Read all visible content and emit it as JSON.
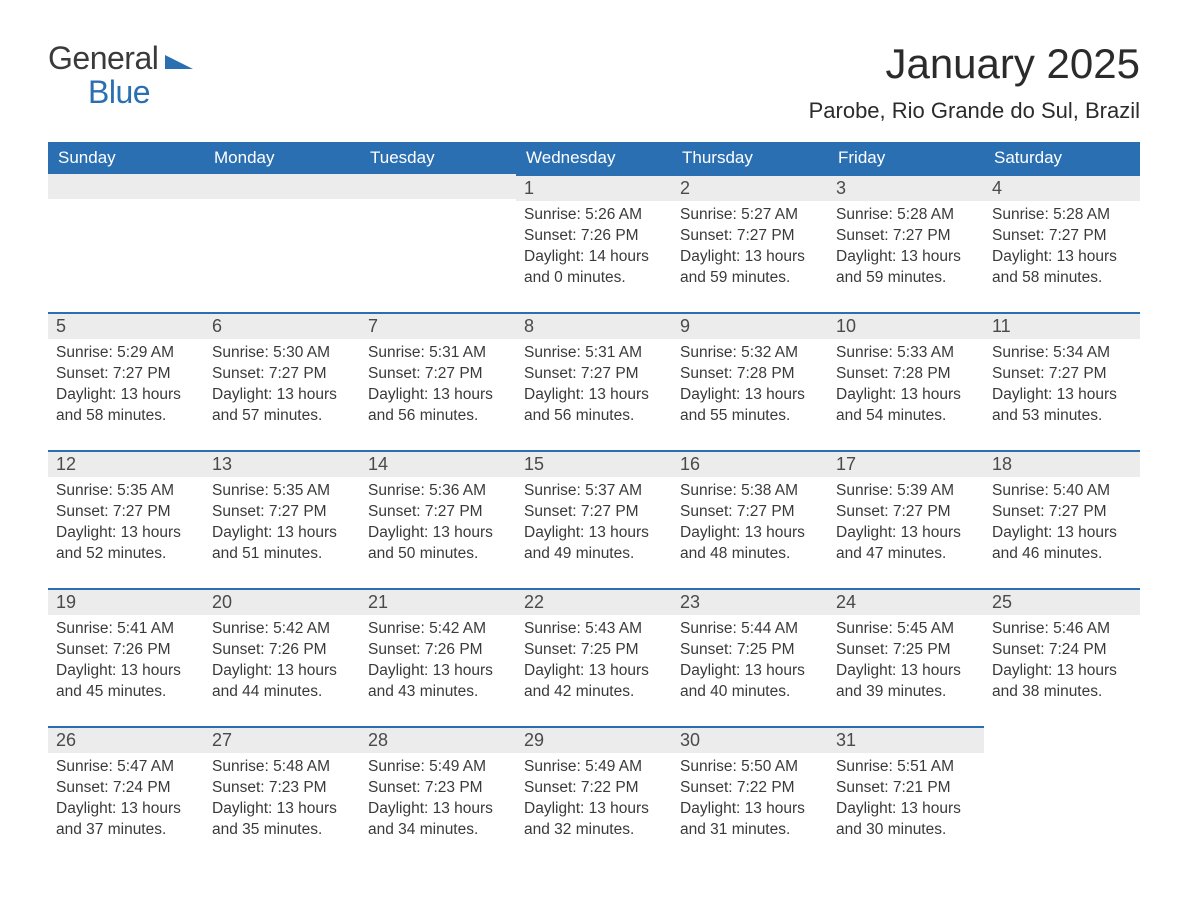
{
  "logo": {
    "text_general": "General",
    "text_blue": "Blue"
  },
  "header": {
    "month_title": "January 2025",
    "location": "Parobe, Rio Grande do Sul, Brazil"
  },
  "calendar": {
    "brand_color": "#2b6fb3",
    "header_bg": "#2b6fb3",
    "header_text_color": "#ffffff",
    "daynum_bg": "#ececec",
    "body_bg": "#ffffff",
    "text_color": "#3a3a3a",
    "columns": [
      "Sunday",
      "Monday",
      "Tuesday",
      "Wednesday",
      "Thursday",
      "Friday",
      "Saturday"
    ],
    "weeks": [
      [
        null,
        null,
        null,
        {
          "day": "1",
          "sunrise": "5:26 AM",
          "sunset": "7:26 PM",
          "daylight": "14 hours and 0 minutes."
        },
        {
          "day": "2",
          "sunrise": "5:27 AM",
          "sunset": "7:27 PM",
          "daylight": "13 hours and 59 minutes."
        },
        {
          "day": "3",
          "sunrise": "5:28 AM",
          "sunset": "7:27 PM",
          "daylight": "13 hours and 59 minutes."
        },
        {
          "day": "4",
          "sunrise": "5:28 AM",
          "sunset": "7:27 PM",
          "daylight": "13 hours and 58 minutes."
        }
      ],
      [
        {
          "day": "5",
          "sunrise": "5:29 AM",
          "sunset": "7:27 PM",
          "daylight": "13 hours and 58 minutes."
        },
        {
          "day": "6",
          "sunrise": "5:30 AM",
          "sunset": "7:27 PM",
          "daylight": "13 hours and 57 minutes."
        },
        {
          "day": "7",
          "sunrise": "5:31 AM",
          "sunset": "7:27 PM",
          "daylight": "13 hours and 56 minutes."
        },
        {
          "day": "8",
          "sunrise": "5:31 AM",
          "sunset": "7:27 PM",
          "daylight": "13 hours and 56 minutes."
        },
        {
          "day": "9",
          "sunrise": "5:32 AM",
          "sunset": "7:28 PM",
          "daylight": "13 hours and 55 minutes."
        },
        {
          "day": "10",
          "sunrise": "5:33 AM",
          "sunset": "7:28 PM",
          "daylight": "13 hours and 54 minutes."
        },
        {
          "day": "11",
          "sunrise": "5:34 AM",
          "sunset": "7:27 PM",
          "daylight": "13 hours and 53 minutes."
        }
      ],
      [
        {
          "day": "12",
          "sunrise": "5:35 AM",
          "sunset": "7:27 PM",
          "daylight": "13 hours and 52 minutes."
        },
        {
          "day": "13",
          "sunrise": "5:35 AM",
          "sunset": "7:27 PM",
          "daylight": "13 hours and 51 minutes."
        },
        {
          "day": "14",
          "sunrise": "5:36 AM",
          "sunset": "7:27 PM",
          "daylight": "13 hours and 50 minutes."
        },
        {
          "day": "15",
          "sunrise": "5:37 AM",
          "sunset": "7:27 PM",
          "daylight": "13 hours and 49 minutes."
        },
        {
          "day": "16",
          "sunrise": "5:38 AM",
          "sunset": "7:27 PM",
          "daylight": "13 hours and 48 minutes."
        },
        {
          "day": "17",
          "sunrise": "5:39 AM",
          "sunset": "7:27 PM",
          "daylight": "13 hours and 47 minutes."
        },
        {
          "day": "18",
          "sunrise": "5:40 AM",
          "sunset": "7:27 PM",
          "daylight": "13 hours and 46 minutes."
        }
      ],
      [
        {
          "day": "19",
          "sunrise": "5:41 AM",
          "sunset": "7:26 PM",
          "daylight": "13 hours and 45 minutes."
        },
        {
          "day": "20",
          "sunrise": "5:42 AM",
          "sunset": "7:26 PM",
          "daylight": "13 hours and 44 minutes."
        },
        {
          "day": "21",
          "sunrise": "5:42 AM",
          "sunset": "7:26 PM",
          "daylight": "13 hours and 43 minutes."
        },
        {
          "day": "22",
          "sunrise": "5:43 AM",
          "sunset": "7:25 PM",
          "daylight": "13 hours and 42 minutes."
        },
        {
          "day": "23",
          "sunrise": "5:44 AM",
          "sunset": "7:25 PM",
          "daylight": "13 hours and 40 minutes."
        },
        {
          "day": "24",
          "sunrise": "5:45 AM",
          "sunset": "7:25 PM",
          "daylight": "13 hours and 39 minutes."
        },
        {
          "day": "25",
          "sunrise": "5:46 AM",
          "sunset": "7:24 PM",
          "daylight": "13 hours and 38 minutes."
        }
      ],
      [
        {
          "day": "26",
          "sunrise": "5:47 AM",
          "sunset": "7:24 PM",
          "daylight": "13 hours and 37 minutes."
        },
        {
          "day": "27",
          "sunrise": "5:48 AM",
          "sunset": "7:23 PM",
          "daylight": "13 hours and 35 minutes."
        },
        {
          "day": "28",
          "sunrise": "5:49 AM",
          "sunset": "7:23 PM",
          "daylight": "13 hours and 34 minutes."
        },
        {
          "day": "29",
          "sunrise": "5:49 AM",
          "sunset": "7:22 PM",
          "daylight": "13 hours and 32 minutes."
        },
        {
          "day": "30",
          "sunrise": "5:50 AM",
          "sunset": "7:22 PM",
          "daylight": "13 hours and 31 minutes."
        },
        {
          "day": "31",
          "sunrise": "5:51 AM",
          "sunset": "7:21 PM",
          "daylight": "13 hours and 30 minutes."
        },
        null
      ]
    ],
    "labels": {
      "sunrise": "Sunrise:",
      "sunset": "Sunset:",
      "daylight": "Daylight:"
    }
  }
}
